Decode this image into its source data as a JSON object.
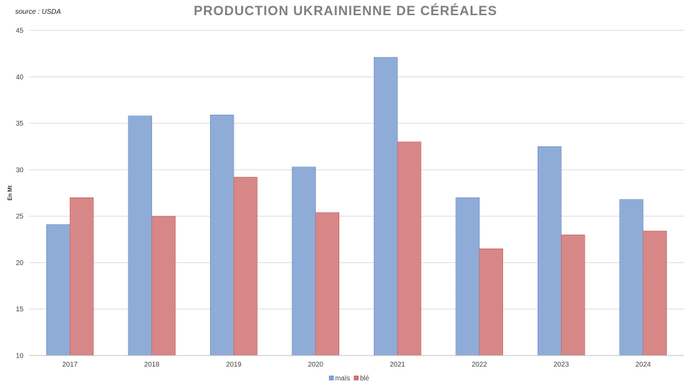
{
  "source": "source : USDA",
  "colors": {
    "mais": "#7f9fcf",
    "ble": "#cf7474",
    "grid": "#d9d9d9"
  },
  "chart_data": {
    "type": "bar",
    "title": "PRODUCTION UKRAINIENNE DE CÉRÉALES",
    "ylabel": "En Mt",
    "xlabel": "",
    "ylim": [
      10,
      45
    ],
    "yticks": [
      10,
      15,
      20,
      25,
      30,
      35,
      40,
      45
    ],
    "grid": true,
    "legend_position": "bottom",
    "categories": [
      "2017",
      "2018",
      "2019",
      "2020",
      "2021",
      "2022",
      "2023",
      "2024"
    ],
    "series": [
      {
        "name": "maïs",
        "values": [
          24.1,
          35.8,
          35.9,
          30.3,
          42.1,
          27.0,
          32.5,
          26.8
        ]
      },
      {
        "name": "blé",
        "values": [
          27.0,
          25.0,
          29.2,
          25.4,
          33.0,
          21.5,
          23.0,
          23.4
        ]
      }
    ]
  }
}
